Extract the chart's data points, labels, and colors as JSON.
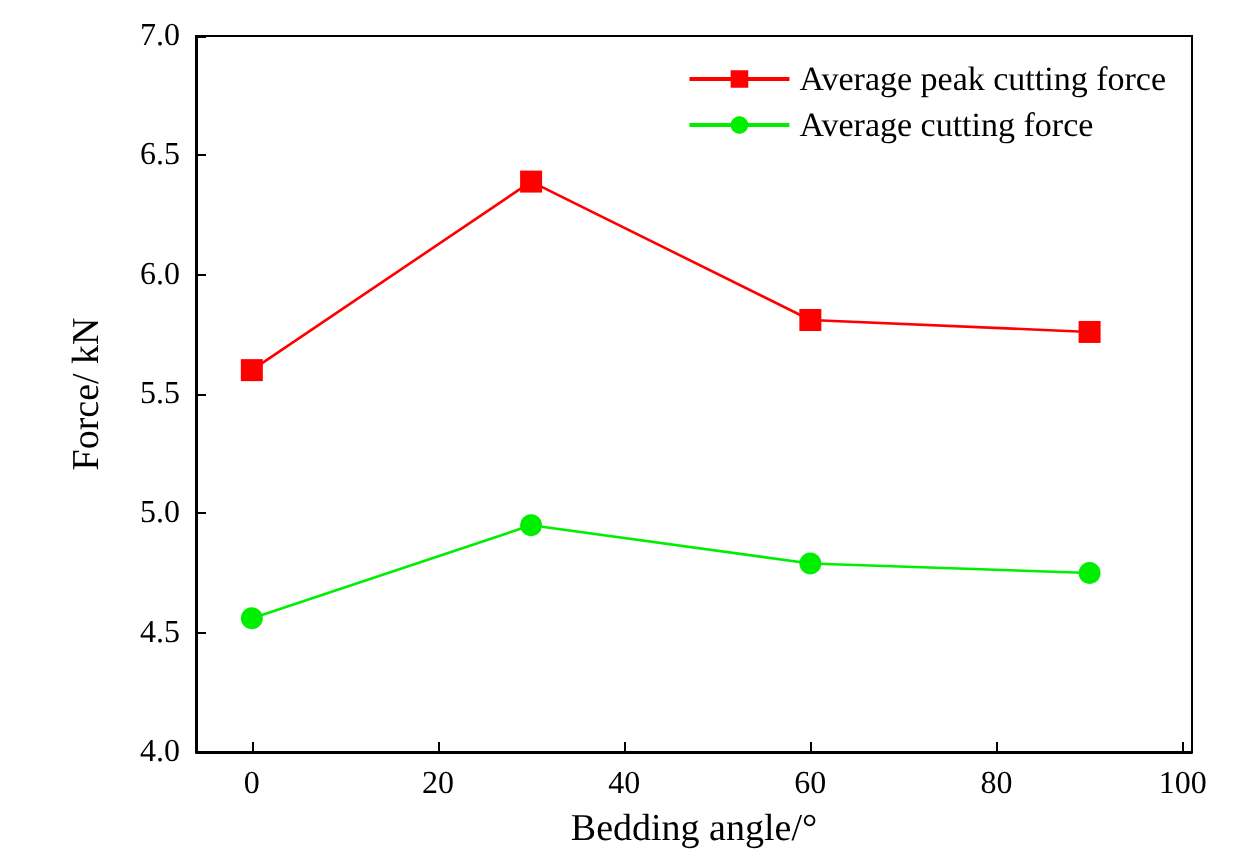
{
  "chart_data": {
    "type": "line",
    "xlabel": "Bedding angle/°",
    "ylabel": "Force/ kN",
    "x": [
      0,
      30,
      60,
      90
    ],
    "series": [
      {
        "name": "Average peak cutting force",
        "color": "#ff0000",
        "marker": "square",
        "values": [
          5.6,
          6.39,
          5.81,
          5.76
        ]
      },
      {
        "name": "Average cutting force",
        "color": "#00ee00",
        "marker": "circle",
        "values": [
          4.56,
          4.95,
          4.79,
          4.75
        ]
      }
    ],
    "xlim": [
      -6,
      101
    ],
    "xticks": [
      0,
      20,
      40,
      60,
      80,
      100
    ],
    "ylim": [
      4.0,
      7.0
    ],
    "yticks": [
      {
        "value": 4.0,
        "label": "4.0"
      },
      {
        "value": 4.5,
        "label": "4.5"
      },
      {
        "value": 5.0,
        "label": "5.0"
      },
      {
        "value": 5.5,
        "label": "5.5"
      },
      {
        "value": 6.0,
        "label": "6.0"
      },
      {
        "value": 6.5,
        "label": "6.5"
      },
      {
        "value": 7.0,
        "label": "7.0"
      }
    ],
    "grid": false,
    "legend": "top right",
    "line_style": "solid"
  }
}
